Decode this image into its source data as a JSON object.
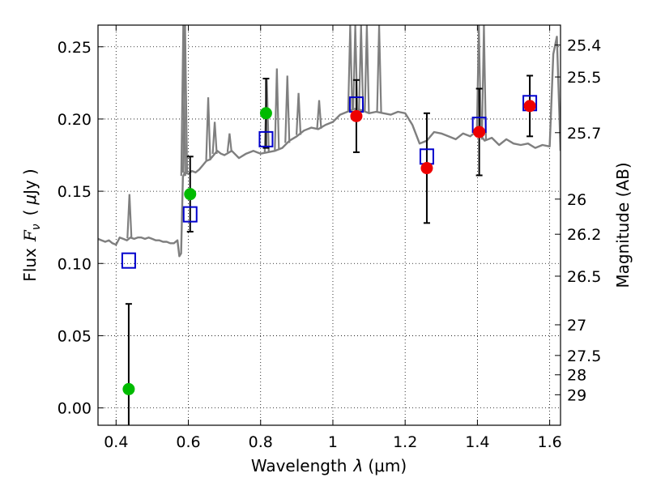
{
  "chart_data": {
    "type": "scatter",
    "title": "",
    "xlabel_prefix": "Wavelength",
    "xlabel_symbol": "λ",
    "xlabel_unit": "(μm)",
    "ylabel_prefix": "Flux",
    "ylabel_symbol": "F",
    "ylabel_subscript": "ν",
    "ylabel_unit_open": "(",
    "ylabel_unit_mu": "μ",
    "ylabel_unit_rest": "Jy",
    "ylabel_unit_close": ")",
    "ylabel_right": "Magnitude (AB)",
    "xlim": [
      0.35,
      1.63
    ],
    "ylim": [
      -0.012,
      0.265
    ],
    "grid": true,
    "x_ticks": [
      0.4,
      0.6,
      0.8,
      1.0,
      1.2,
      1.4,
      1.6
    ],
    "x_tick_labels": [
      "0.4",
      "0.6",
      "0.8",
      "1",
      "1.2",
      "1.4",
      "1.6"
    ],
    "y_ticks": [
      0.0,
      0.05,
      0.1,
      0.15,
      0.2,
      0.25
    ],
    "y_tick_labels": [
      "0.00",
      "0.05",
      "0.10",
      "0.15",
      "0.20",
      "0.25"
    ],
    "right_ticks": [
      {
        "mag": 25.4,
        "label": "25.4"
      },
      {
        "mag": 25.5,
        "label": "25.5"
      },
      {
        "mag": 25.7,
        "label": "25.7"
      },
      {
        "mag": 26.0,
        "label": "26"
      },
      {
        "mag": 26.2,
        "label": "26.2"
      },
      {
        "mag": 26.5,
        "label": "26.5"
      },
      {
        "mag": 27.0,
        "label": "27"
      },
      {
        "mag": 27.5,
        "label": "27.5"
      },
      {
        "mag": 28.0,
        "label": "28"
      },
      {
        "mag": 29.0,
        "label": "29"
      }
    ],
    "series": [
      {
        "name": "model spectrum",
        "kind": "line",
        "color": "#7f7f7f",
        "x": [
          0.35,
          0.36,
          0.37,
          0.38,
          0.39,
          0.4,
          0.41,
          0.42,
          0.43,
          0.44,
          0.45,
          0.46,
          0.47,
          0.48,
          0.49,
          0.5,
          0.51,
          0.52,
          0.53,
          0.54,
          0.55,
          0.56,
          0.57,
          0.575,
          0.58,
          0.585,
          0.59,
          0.6,
          0.61,
          0.62,
          0.63,
          0.64,
          0.65,
          0.66,
          0.67,
          0.68,
          0.69,
          0.7,
          0.72,
          0.74,
          0.76,
          0.78,
          0.8,
          0.82,
          0.84,
          0.86,
          0.88,
          0.9,
          0.92,
          0.94,
          0.96,
          0.98,
          1.0,
          1.02,
          1.04,
          1.06,
          1.08,
          1.1,
          1.12,
          1.14,
          1.16,
          1.18,
          1.2,
          1.22,
          1.24,
          1.26,
          1.28,
          1.3,
          1.32,
          1.34,
          1.36,
          1.38,
          1.4,
          1.42,
          1.44,
          1.46,
          1.48,
          1.5,
          1.52,
          1.54,
          1.56,
          1.58,
          1.6,
          1.61,
          1.62,
          1.63
        ],
        "y": [
          0.117,
          0.116,
          0.115,
          0.116,
          0.114,
          0.113,
          0.118,
          0.117,
          0.116,
          0.118,
          0.117,
          0.118,
          0.118,
          0.117,
          0.118,
          0.117,
          0.116,
          0.116,
          0.115,
          0.115,
          0.114,
          0.114,
          0.116,
          0.105,
          0.107,
          0.16,
          0.163,
          0.162,
          0.164,
          0.163,
          0.165,
          0.168,
          0.171,
          0.172,
          0.175,
          0.178,
          0.176,
          0.175,
          0.178,
          0.173,
          0.176,
          0.178,
          0.176,
          0.177,
          0.178,
          0.18,
          0.185,
          0.188,
          0.192,
          0.194,
          0.193,
          0.196,
          0.198,
          0.203,
          0.205,
          0.207,
          0.206,
          0.204,
          0.205,
          0.204,
          0.203,
          0.205,
          0.204,
          0.196,
          0.183,
          0.185,
          0.191,
          0.19,
          0.188,
          0.186,
          0.19,
          0.188,
          0.192,
          0.185,
          0.187,
          0.182,
          0.186,
          0.183,
          0.182,
          0.183,
          0.18,
          0.182,
          0.181,
          0.245,
          0.257,
          0.178
        ]
      },
      {
        "name": "emission lines",
        "kind": "spikes",
        "color": "#7f7f7f",
        "lines": [
          [
            0.437,
            0.148
          ],
          [
            0.586,
            0.265
          ],
          [
            0.591,
            0.265
          ],
          [
            0.655,
            0.215
          ],
          [
            0.673,
            0.198
          ],
          [
            0.714,
            0.19
          ],
          [
            0.817,
            0.228
          ],
          [
            0.845,
            0.235
          ],
          [
            0.874,
            0.23
          ],
          [
            0.905,
            0.218
          ],
          [
            0.962,
            0.213
          ],
          [
            1.048,
            0.265
          ],
          [
            1.062,
            0.265
          ],
          [
            1.078,
            0.265
          ],
          [
            1.094,
            0.265
          ],
          [
            1.128,
            0.265
          ],
          [
            1.404,
            0.265
          ],
          [
            1.418,
            0.265
          ]
        ]
      },
      {
        "name": "model photometry",
        "kind": "square",
        "color": "#0000cc",
        "x": [
          0.435,
          0.605,
          0.815,
          1.065,
          1.26,
          1.405,
          1.545
        ],
        "y": [
          0.102,
          0.134,
          0.186,
          0.21,
          0.174,
          0.196,
          0.211
        ]
      },
      {
        "name": "observed (green)",
        "kind": "circle",
        "color": "#00bb00",
        "x": [
          0.435,
          0.605,
          0.815
        ],
        "y": [
          0.013,
          0.148,
          0.204
        ],
        "err": [
          0.059,
          0.026,
          0.024
        ]
      },
      {
        "name": "observed (red)",
        "kind": "circle",
        "color": "#ee0000",
        "x": [
          1.065,
          1.26,
          1.405,
          1.545
        ],
        "y": [
          0.202,
          0.166,
          0.191,
          0.209
        ],
        "err": [
          0.025,
          0.038,
          0.03,
          0.021
        ]
      }
    ]
  }
}
